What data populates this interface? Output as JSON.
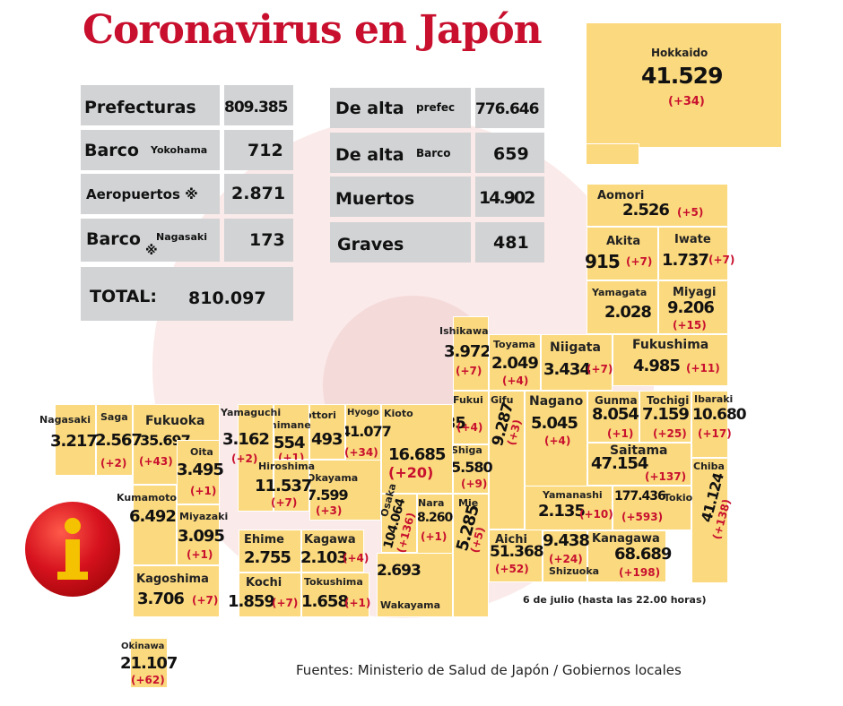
{
  "title": "Coronavirus en Japón",
  "summary": {
    "prefecturas": {
      "label": "Prefecturas",
      "value": "809.385"
    },
    "barco_yokohama": {
      "label": "Barco",
      "sub": "Yokohama",
      "value": "712"
    },
    "aeropuertos": {
      "label": "Aeropuertos ※",
      "value": "2.871"
    },
    "barco_nagasaki": {
      "label": "Barco",
      "mark": "※",
      "sub": "Nagasaki",
      "value": "173"
    },
    "total": {
      "label": "TOTAL:",
      "value": "810.097"
    },
    "de_alta_prefec": {
      "label": "De alta",
      "sub": "prefec",
      "value": "776.646"
    },
    "de_alta_barco": {
      "label": "De alta",
      "sub": "Barco",
      "value": "659"
    },
    "muertos": {
      "label": "Muertos",
      "value": "14.902"
    },
    "graves": {
      "label": "Graves",
      "value": "481"
    }
  },
  "prefectures": {
    "hokkaido": {
      "name": "Hokkaido",
      "value": "41.529",
      "delta": "(+34)"
    },
    "aomori": {
      "name": "Aomori",
      "value": "2.526",
      "delta": "(+5)"
    },
    "akita": {
      "name": "Akita",
      "value": "915",
      "delta": "(+7)"
    },
    "iwate": {
      "name": "Iwate",
      "value": "1.737",
      "delta": "(+7)"
    },
    "yamagata": {
      "name": "Yamagata",
      "value": "2.028"
    },
    "miyagi": {
      "name": "Miyagi",
      "value": "9.206",
      "delta": "(+15)"
    },
    "ishikawa": {
      "name": "Ishikawa",
      "value": "3.972",
      "delta": "(+7)"
    },
    "toyama": {
      "name": "Toyama",
      "value": "2.049",
      "delta": "(+4)"
    },
    "niigata": {
      "name": "Niigata",
      "value": "3.434",
      "delta": "(+7)"
    },
    "fukushima": {
      "name": "Fukushima",
      "value": "4.985",
      "delta": "(+11)"
    },
    "fukui": {
      "name": "Fukui",
      "value": "1.335",
      "delta": "(+4)"
    },
    "gifu": {
      "name": "Gifu",
      "value": "9.287",
      "delta": "(+3)"
    },
    "nagano": {
      "name": "Nagano",
      "value": "5.045",
      "delta": "(+4)"
    },
    "gunma": {
      "name": "Gunma",
      "value": "8.054",
      "delta": "(+1)"
    },
    "tochigi": {
      "name": "Tochigi",
      "value": "7.159",
      "delta": "(+25)"
    },
    "ibaraki": {
      "name": "Ibaraki",
      "value": "10.680",
      "delta": "(+17)"
    },
    "saitama": {
      "name": "Saitama",
      "value": "47.154",
      "delta": "(+137)"
    },
    "chiba": {
      "name": "Chiba",
      "value": "41.124",
      "delta": "(+138)"
    },
    "tokio": {
      "name": "Tokio",
      "value": "177.436",
      "delta": "(+593)"
    },
    "yamanashi": {
      "name": "Yamanashi",
      "value": "2.135",
      "delta": "(+10)"
    },
    "kanagawa": {
      "name": "Kanagawa",
      "value": "68.689",
      "delta": "(+198)"
    },
    "shizuoka": {
      "name": "Shizuoka",
      "value": "9.438",
      "delta": "(+24)"
    },
    "aichi": {
      "name": "Aichi",
      "value": "51.368",
      "delta": "(+52)"
    },
    "mie": {
      "name": "Mie",
      "value": "5.285",
      "delta": "(+5)"
    },
    "shiga": {
      "name": "Shiga",
      "value": "5.580",
      "delta": "(+9)"
    },
    "kioto": {
      "name": "Kioto",
      "value": "16.685",
      "delta": "(+20)"
    },
    "nara": {
      "name": "Nara",
      "value": "8.260",
      "delta": "(+1)"
    },
    "osaka": {
      "name": "Osaka",
      "value": "104.064",
      "delta": "(+136)"
    },
    "wakayama": {
      "name": "Wakayama",
      "value": "2.693"
    },
    "hyogo": {
      "name": "Hyogo",
      "value": "41.077",
      "delta": "(+34)"
    },
    "tottori": {
      "name": "Tottori",
      "value": "493"
    },
    "okayama": {
      "name": "Okayama",
      "value": "7.599",
      "delta": "(+3)"
    },
    "shimane": {
      "name": "Shimane",
      "value": "554",
      "delta": "(+1)"
    },
    "hiroshima": {
      "name": "Hiroshima",
      "value": "11.537",
      "delta": "(+7)"
    },
    "yamaguchi": {
      "name": "Yamaguchi",
      "value": "3.162",
      "delta": "(+2)"
    },
    "ehime": {
      "name": "Ehime",
      "value": "2.755"
    },
    "kagawa": {
      "name": "Kagawa",
      "value": "2.103",
      "delta": "(+4)"
    },
    "kochi": {
      "name": "Kochi",
      "value": "1.859",
      "delta": "(+7)"
    },
    "tokushima": {
      "name": "Tokushima",
      "value": "1.658",
      "delta": "(+1)"
    },
    "fukuoka": {
      "name": "Fukuoka",
      "value": "35.697",
      "delta": "(+43)"
    },
    "oita": {
      "name": "Oita",
      "value": "3.495",
      "delta": "(+1)"
    },
    "saga": {
      "name": "Saga",
      "value": "2.567",
      "delta": "(+2)"
    },
    "nagasaki": {
      "name": "Nagasaki",
      "value": "3.217"
    },
    "kumamoto": {
      "name": "Kumamoto",
      "value": "6.492"
    },
    "miyazaki": {
      "name": "Miyazaki",
      "value": "3.095",
      "delta": "(+1)"
    },
    "kagoshima": {
      "name": "Kagoshima",
      "value": "3.706",
      "delta": "(+7)"
    },
    "okinawa": {
      "name": "Okinawa",
      "value": "21.107",
      "delta": "(+62)"
    }
  },
  "date_note": "6 de julio  (hasta las  22.00 horas)",
  "sources": "Fuentes: Ministerio de Salud de Japón / Gobiernos locales",
  "colors": {
    "title": "#c8102e",
    "tile": "#fbd97e",
    "summary_box": "#d1d3d4",
    "delta": "#c8102e"
  },
  "icons": {
    "info": "info-icon"
  }
}
